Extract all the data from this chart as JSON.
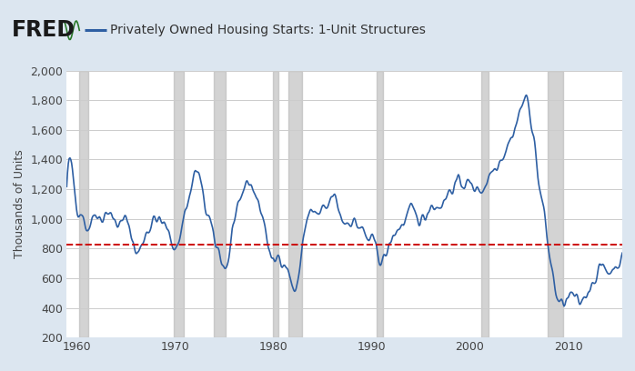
{
  "title": "Privately Owned Housing Starts: 1-Unit Structures",
  "ylabel": "Thousands of Units",
  "bg_color": "#dce6f0",
  "plot_bg_color": "#ffffff",
  "line_color": "#2e5fa3",
  "dashed_line_color": "#cc0000",
  "dashed_line_value": 825,
  "ylim": [
    200,
    2000
  ],
  "yticks": [
    200,
    400,
    600,
    800,
    1000,
    1200,
    1400,
    1600,
    1800,
    2000
  ],
  "xlim_start": 1959.0,
  "xlim_end": 2015.5,
  "xticks": [
    1960,
    1970,
    1980,
    1990,
    2000,
    2010
  ],
  "recession_bands": [
    [
      1960.25,
      1961.17
    ],
    [
      1969.92,
      1970.92
    ],
    [
      1973.92,
      1975.17
    ],
    [
      1980.0,
      1980.5
    ],
    [
      1981.5,
      1982.92
    ],
    [
      1990.5,
      1991.17
    ],
    [
      2001.17,
      2001.92
    ],
    [
      2007.92,
      2009.5
    ]
  ],
  "keypoints": [
    [
      1959.0,
      1200
    ],
    [
      1959.5,
      1350
    ],
    [
      1960.0,
      1100
    ],
    [
      1960.5,
      1050
    ],
    [
      1961.0,
      950
    ],
    [
      1961.5,
      980
    ],
    [
      1962.0,
      1050
    ],
    [
      1962.5,
      1000
    ],
    [
      1963.0,
      1050
    ],
    [
      1963.5,
      1020
    ],
    [
      1964.0,
      980
    ],
    [
      1964.5,
      960
    ],
    [
      1965.0,
      1000
    ],
    [
      1965.5,
      920
    ],
    [
      1966.0,
      780
    ],
    [
      1966.5,
      800
    ],
    [
      1967.0,
      900
    ],
    [
      1967.5,
      950
    ],
    [
      1968.0,
      1000
    ],
    [
      1968.5,
      980
    ],
    [
      1969.0,
      950
    ],
    [
      1969.5,
      880
    ],
    [
      1970.0,
      815
    ],
    [
      1970.5,
      870
    ],
    [
      1971.0,
      1050
    ],
    [
      1971.5,
      1150
    ],
    [
      1972.0,
      1300
    ],
    [
      1972.5,
      1280
    ],
    [
      1973.0,
      1100
    ],
    [
      1973.5,
      1000
    ],
    [
      1974.0,
      850
    ],
    [
      1974.5,
      780
    ],
    [
      1975.0,
      680
    ],
    [
      1975.5,
      750
    ],
    [
      1976.0,
      980
    ],
    [
      1976.5,
      1050
    ],
    [
      1977.0,
      1200
    ],
    [
      1977.5,
      1250
    ],
    [
      1978.0,
      1200
    ],
    [
      1978.5,
      1100
    ],
    [
      1979.0,
      1000
    ],
    [
      1979.5,
      820
    ],
    [
      1980.0,
      700
    ],
    [
      1980.5,
      750
    ],
    [
      1981.0,
      720
    ],
    [
      1981.5,
      650
    ],
    [
      1982.0,
      540
    ],
    [
      1982.5,
      560
    ],
    [
      1983.0,
      850
    ],
    [
      1983.5,
      1000
    ],
    [
      1984.0,
      1050
    ],
    [
      1984.5,
      1020
    ],
    [
      1985.0,
      1050
    ],
    [
      1985.5,
      1070
    ],
    [
      1986.0,
      1150
    ],
    [
      1986.5,
      1100
    ],
    [
      1987.0,
      1000
    ],
    [
      1987.5,
      980
    ],
    [
      1988.0,
      990
    ],
    [
      1988.5,
      960
    ],
    [
      1989.0,
      930
    ],
    [
      1989.5,
      870
    ],
    [
      1990.0,
      850
    ],
    [
      1990.5,
      800
    ],
    [
      1991.0,
      720
    ],
    [
      1991.5,
      760
    ],
    [
      1992.0,
      850
    ],
    [
      1992.5,
      920
    ],
    [
      1993.0,
      950
    ],
    [
      1993.5,
      1000
    ],
    [
      1994.0,
      1050
    ],
    [
      1994.5,
      1020
    ],
    [
      1995.0,
      1000
    ],
    [
      1995.5,
      1020
    ],
    [
      1996.0,
      1100
    ],
    [
      1996.5,
      1080
    ],
    [
      1997.0,
      1100
    ],
    [
      1997.5,
      1130
    ],
    [
      1998.0,
      1200
    ],
    [
      1998.5,
      1220
    ],
    [
      1999.0,
      1250
    ],
    [
      1999.5,
      1240
    ],
    [
      2000.0,
      1230
    ],
    [
      2000.5,
      1210
    ],
    [
      2001.0,
      1200
    ],
    [
      2001.5,
      1220
    ],
    [
      2002.0,
      1300
    ],
    [
      2002.5,
      1350
    ],
    [
      2003.0,
      1400
    ],
    [
      2003.5,
      1450
    ],
    [
      2004.0,
      1520
    ],
    [
      2004.5,
      1600
    ],
    [
      2005.0,
      1700
    ],
    [
      2005.5,
      1800
    ],
    [
      2006.0,
      1750
    ],
    [
      2006.5,
      1550
    ],
    [
      2007.0,
      1250
    ],
    [
      2007.5,
      1050
    ],
    [
      2008.0,
      800
    ],
    [
      2008.5,
      600
    ],
    [
      2009.0,
      440
    ],
    [
      2009.5,
      430
    ],
    [
      2010.0,
      460
    ],
    [
      2010.5,
      480
    ],
    [
      2011.0,
      430
    ],
    [
      2011.5,
      460
    ],
    [
      2012.0,
      520
    ],
    [
      2012.5,
      580
    ],
    [
      2013.0,
      640
    ],
    [
      2013.5,
      670
    ],
    [
      2014.0,
      650
    ],
    [
      2014.5,
      660
    ],
    [
      2015.0,
      700
    ],
    [
      2015.5,
      730
    ]
  ],
  "line_width": 1.2,
  "noise_std": 50,
  "noise_seed": 42
}
